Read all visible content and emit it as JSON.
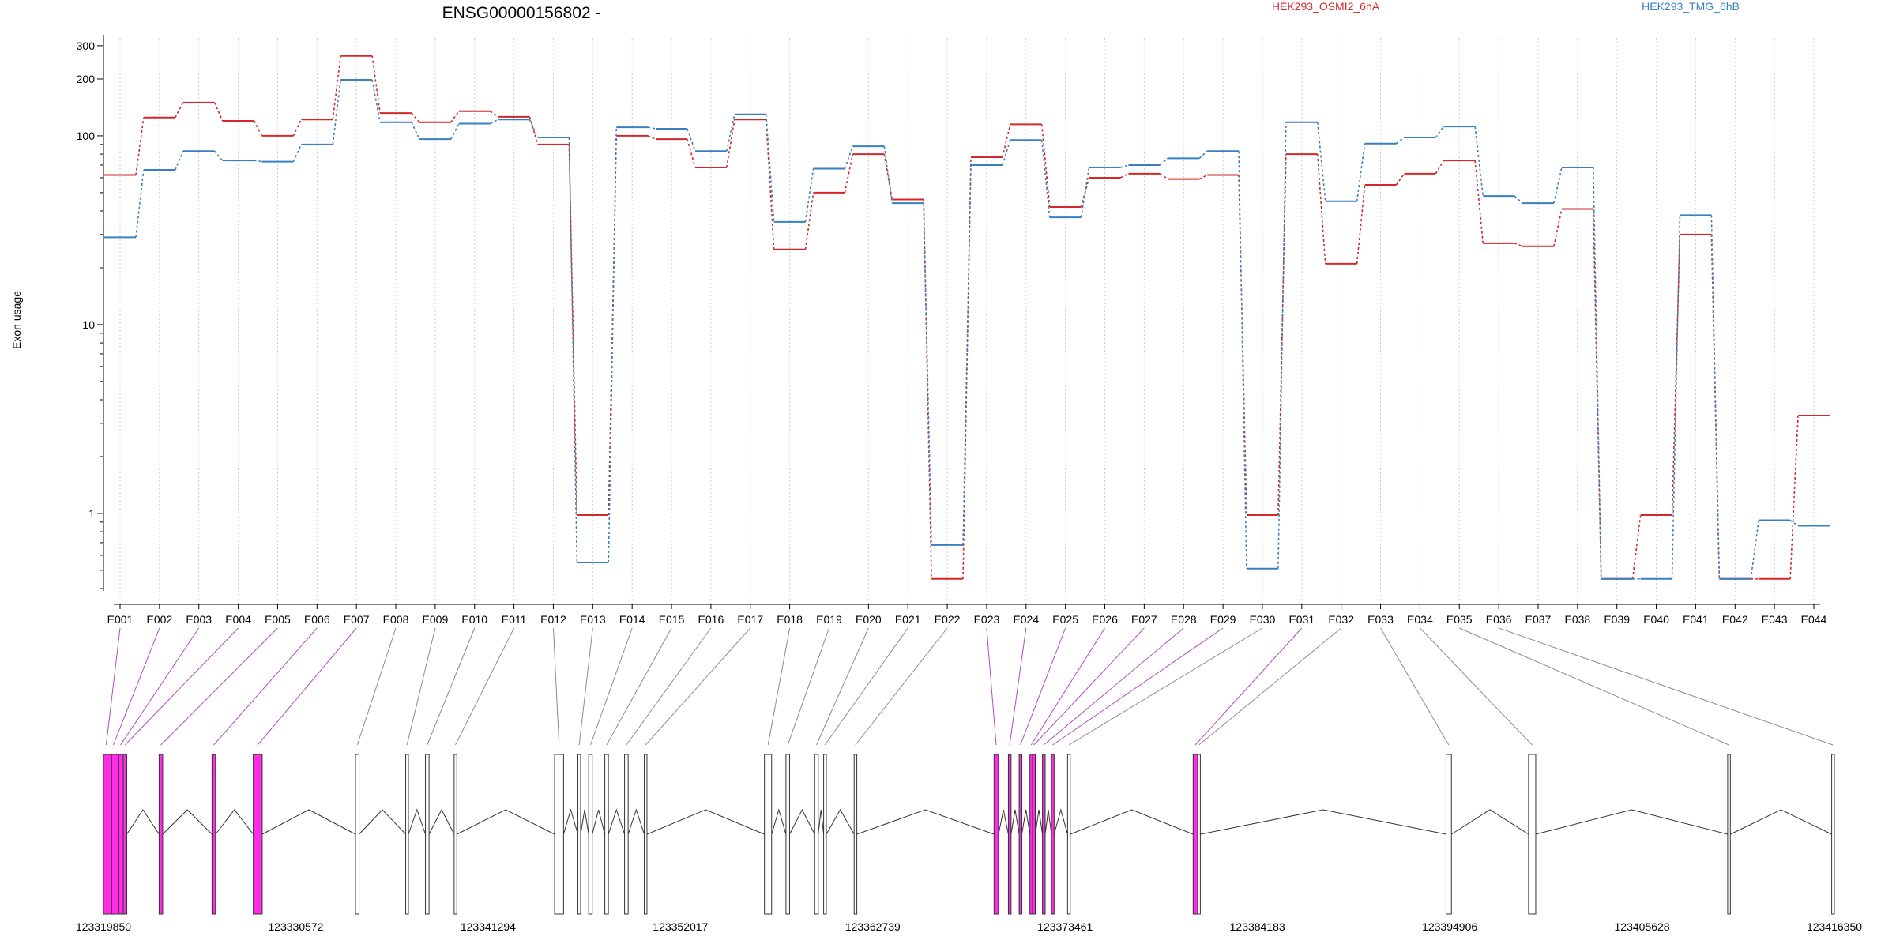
{
  "chart_data": {
    "type": "line",
    "title": "ENSG00000156802 -",
    "ylabel": "Exon usage",
    "yscale": "log",
    "ylim": [
      0.4,
      330
    ],
    "yticks": [
      1,
      10,
      100,
      200,
      300
    ],
    "ytick_labels": [
      "1",
      "10",
      "100",
      "200",
      "300"
    ],
    "grid": "vertical-dotted",
    "legend": "top-right",
    "categories": [
      "E001",
      "E002",
      "E003",
      "E004",
      "E005",
      "E006",
      "E007",
      "E008",
      "E009",
      "E010",
      "E011",
      "E012",
      "E013",
      "E014",
      "E015",
      "E016",
      "E017",
      "E018",
      "E019",
      "E020",
      "E021",
      "E022",
      "E023",
      "E024",
      "E025",
      "E026",
      "E027",
      "E028",
      "E029",
      "E030",
      "E031",
      "E032",
      "E033",
      "E034",
      "E035",
      "E036",
      "E037",
      "E038",
      "E039",
      "E040",
      "E041",
      "E042",
      "E043",
      "E044"
    ],
    "series": [
      {
        "name": "HEK293_OSMI2_6hA",
        "color": "#d62728",
        "values": [
          62,
          125,
          150,
          120,
          100,
          122,
          265,
          132,
          118,
          135,
          126,
          90,
          0.98,
          100,
          96,
          68,
          122,
          25,
          50,
          80,
          46,
          0.45,
          77,
          115,
          42,
          60,
          63,
          59,
          62,
          0.98,
          80,
          21,
          55,
          63,
          74,
          27,
          26,
          41,
          0.45,
          0.98,
          30,
          0.45,
          0.45,
          3.3
        ]
      },
      {
        "name": "HEK293_TMG_6hB",
        "color": "#3a7fc1",
        "values": [
          29,
          66,
          83,
          74,
          73,
          90,
          198,
          118,
          96,
          116,
          122,
          98,
          0.55,
          111,
          109,
          83,
          130,
          35,
          67,
          88,
          44,
          0.68,
          70,
          95,
          37,
          68,
          70,
          76,
          83,
          0.51,
          118,
          45,
          91,
          98,
          112,
          48,
          44,
          68,
          0.45,
          0.45,
          38,
          0.45,
          0.92,
          0.86
        ]
      }
    ]
  },
  "gene_model": {
    "coordinate_labels": [
      "123319850",
      "123330572",
      "123341294",
      "123352017",
      "123362739",
      "123373461",
      "123384183",
      "123394906",
      "123405628",
      "123416350"
    ],
    "coord_min": 123319850,
    "coord_max": 123416350,
    "exons": [
      {
        "start": 123319850,
        "end": 123320300,
        "highlight": true
      },
      {
        "start": 123320300,
        "end": 123320700,
        "highlight": true
      },
      {
        "start": 123320700,
        "end": 123320950,
        "highlight": true
      },
      {
        "start": 123320950,
        "end": 123321150,
        "highlight": true
      },
      {
        "start": 123322950,
        "end": 123323150,
        "highlight": true
      },
      {
        "start": 123325900,
        "end": 123326100,
        "highlight": true
      },
      {
        "start": 123328200,
        "end": 123328700,
        "highlight": true
      },
      {
        "start": 123333900,
        "end": 123334100,
        "highlight": false
      },
      {
        "start": 123336700,
        "end": 123336850,
        "highlight": false
      },
      {
        "start": 123337800,
        "end": 123338000,
        "highlight": false
      },
      {
        "start": 123339400,
        "end": 123339550,
        "highlight": false
      },
      {
        "start": 123345000,
        "end": 123345500,
        "highlight": false
      },
      {
        "start": 123346300,
        "end": 123346450,
        "highlight": false
      },
      {
        "start": 123346900,
        "end": 123347100,
        "highlight": false
      },
      {
        "start": 123347800,
        "end": 123348000,
        "highlight": false
      },
      {
        "start": 123348900,
        "end": 123349100,
        "highlight": false
      },
      {
        "start": 123350000,
        "end": 123350150,
        "highlight": false
      },
      {
        "start": 123356700,
        "end": 123357100,
        "highlight": false
      },
      {
        "start": 123357900,
        "end": 123358100,
        "highlight": false
      },
      {
        "start": 123359500,
        "end": 123359700,
        "highlight": false
      },
      {
        "start": 123360000,
        "end": 123360150,
        "highlight": false
      },
      {
        "start": 123361700,
        "end": 123361850,
        "highlight": false
      },
      {
        "start": 123369500,
        "end": 123369750,
        "highlight": true
      },
      {
        "start": 123370300,
        "end": 123370450,
        "highlight": true
      },
      {
        "start": 123370900,
        "end": 123371050,
        "highlight": true
      },
      {
        "start": 123371500,
        "end": 123371650,
        "highlight": true
      },
      {
        "start": 123371650,
        "end": 123371800,
        "highlight": true
      },
      {
        "start": 123372200,
        "end": 123372350,
        "highlight": true
      },
      {
        "start": 123372700,
        "end": 123372850,
        "highlight": true
      },
      {
        "start": 123373600,
        "end": 123373750,
        "highlight": false
      },
      {
        "start": 123380600,
        "end": 123380850,
        "highlight": true
      },
      {
        "start": 123380850,
        "end": 123381000,
        "highlight": false
      },
      {
        "start": 123394700,
        "end": 123395000,
        "highlight": false
      },
      {
        "start": 123399300,
        "end": 123399700,
        "highlight": false
      },
      {
        "start": 123410400,
        "end": 123410550,
        "highlight": false
      },
      {
        "start": 123416200,
        "end": 123416350,
        "highlight": false
      }
    ],
    "mapping": [
      {
        "exon": "E001",
        "pos": 123320000,
        "highlight": true
      },
      {
        "exon": "E002",
        "pos": 123320400,
        "highlight": true
      },
      {
        "exon": "E003",
        "pos": 123320800,
        "highlight": true
      },
      {
        "exon": "E004",
        "pos": 123321050,
        "highlight": true
      },
      {
        "exon": "E005",
        "pos": 123323050,
        "highlight": true
      },
      {
        "exon": "E006",
        "pos": 123326000,
        "highlight": true
      },
      {
        "exon": "E007",
        "pos": 123328450,
        "highlight": true
      },
      {
        "exon": "E008",
        "pos": 123334000,
        "highlight": false
      },
      {
        "exon": "E009",
        "pos": 123336770,
        "highlight": false
      },
      {
        "exon": "E010",
        "pos": 123337900,
        "highlight": false
      },
      {
        "exon": "E011",
        "pos": 123339470,
        "highlight": false
      },
      {
        "exon": "E012",
        "pos": 123345250,
        "highlight": false
      },
      {
        "exon": "E013",
        "pos": 123346370,
        "highlight": false
      },
      {
        "exon": "E014",
        "pos": 123347000,
        "highlight": false
      },
      {
        "exon": "E015",
        "pos": 123347900,
        "highlight": false
      },
      {
        "exon": "E016",
        "pos": 123349000,
        "highlight": false
      },
      {
        "exon": "E017",
        "pos": 123350070,
        "highlight": false
      },
      {
        "exon": "E018",
        "pos": 123356900,
        "highlight": false
      },
      {
        "exon": "E019",
        "pos": 123358000,
        "highlight": false
      },
      {
        "exon": "E020",
        "pos": 123359600,
        "highlight": false
      },
      {
        "exon": "E021",
        "pos": 123360070,
        "highlight": false
      },
      {
        "exon": "E022",
        "pos": 123361770,
        "highlight": false
      },
      {
        "exon": "E023",
        "pos": 123369620,
        "highlight": true
      },
      {
        "exon": "E024",
        "pos": 123370370,
        "highlight": true
      },
      {
        "exon": "E025",
        "pos": 123370970,
        "highlight": true
      },
      {
        "exon": "E026",
        "pos": 123371570,
        "highlight": true
      },
      {
        "exon": "E027",
        "pos": 123371720,
        "highlight": true
      },
      {
        "exon": "E028",
        "pos": 123372270,
        "highlight": true
      },
      {
        "exon": "E029",
        "pos": 123372770,
        "highlight": true
      },
      {
        "exon": "E030",
        "pos": 123373670,
        "highlight": false
      },
      {
        "exon": "E031",
        "pos": 123380720,
        "highlight": true
      },
      {
        "exon": "E032",
        "pos": 123380920,
        "highlight": false
      },
      {
        "exon": "E033",
        "pos": 123394850,
        "highlight": false
      },
      {
        "exon": "E034",
        "pos": 123399500,
        "highlight": false
      },
      {
        "exon": "E035",
        "pos": 123410470,
        "highlight": false
      },
      {
        "exon": "E036",
        "pos": 123416270,
        "highlight": false
      }
    ]
  }
}
